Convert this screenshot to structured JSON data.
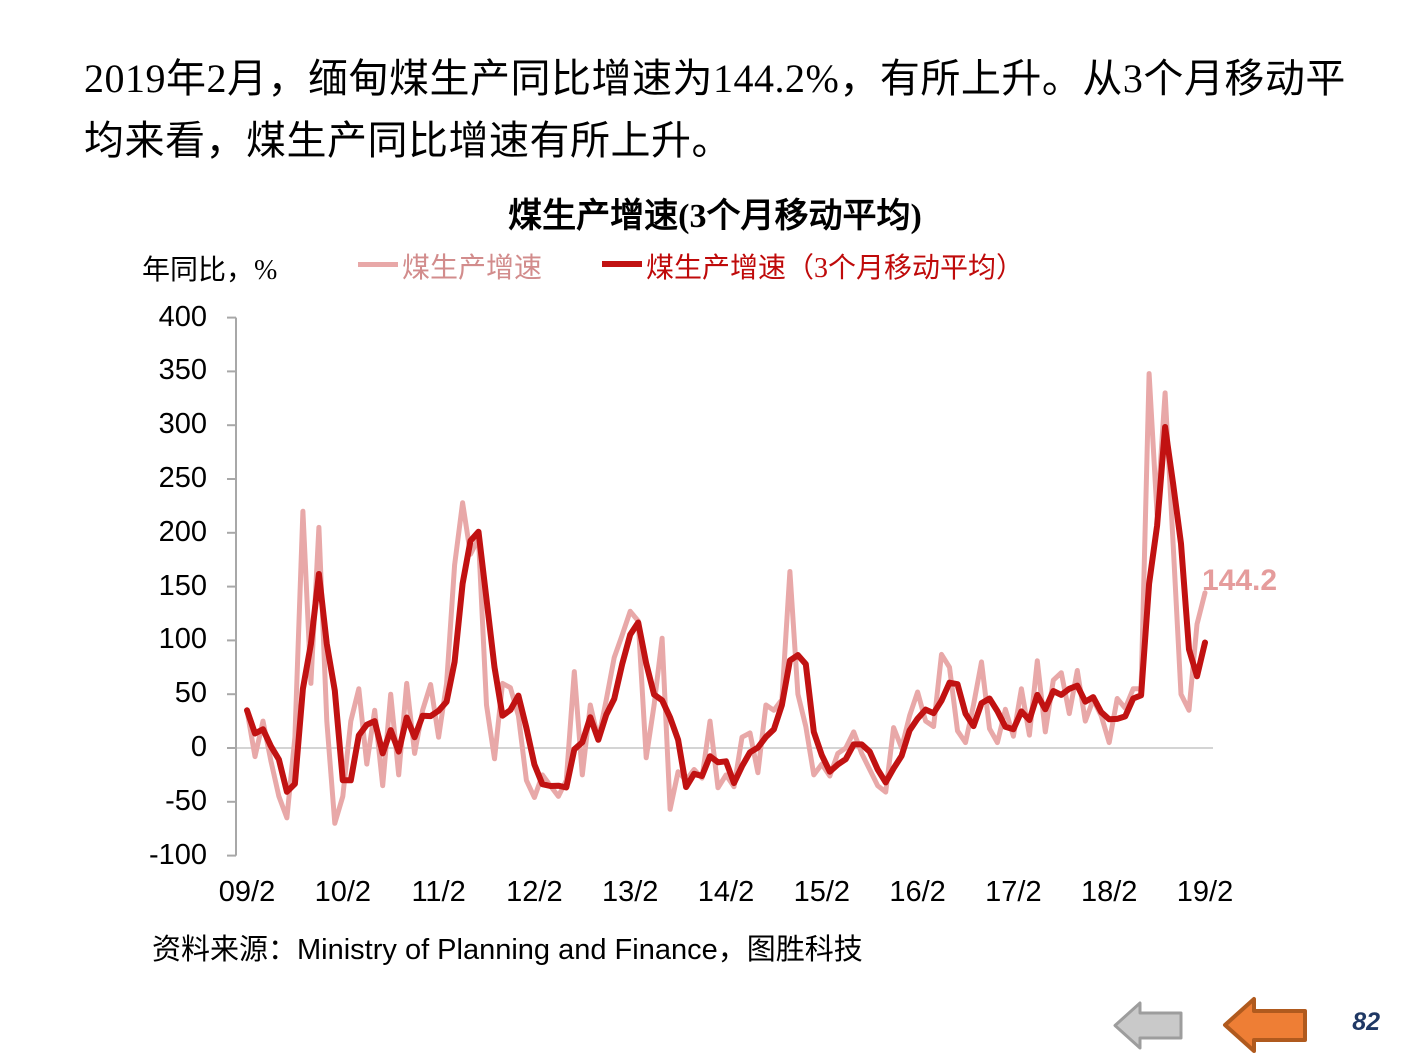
{
  "page": {
    "intro_lines": [
      "2019年2月，缅甸煤生产同比增速为144.2%，有所上升。从3个月移动平",
      "均来看，煤生产同比增速有所上升。"
    ],
    "page_number": "82"
  },
  "source_note": "资料来源：Ministry of Planning and Finance，图胜科技",
  "chart_data": {
    "type": "line",
    "title": "煤生产增速(3个月移动平均)",
    "ylabel": "年同比，%",
    "xlabel": "",
    "ylim": [
      -100,
      400
    ],
    "y_ticks": [
      400,
      350,
      300,
      250,
      200,
      150,
      100,
      50,
      0,
      -50,
      -100
    ],
    "x_tick_labels": [
      "09/2",
      "10/2",
      "11/2",
      "12/2",
      "13/2",
      "14/2",
      "15/2",
      "16/2",
      "17/2",
      "18/2",
      "19/2"
    ],
    "x_start_month": "2009-02",
    "x_end_month": "2019-02",
    "x_points": 121,
    "grid": "zero-line-only",
    "legend_position": "top-left",
    "series": [
      {
        "name": "煤生产增速",
        "color": "#e8a8a8",
        "text_color": "#d28c8c",
        "values": [
          35,
          -8,
          25,
          -12,
          -45,
          -65,
          10,
          220,
          60,
          205,
          25,
          -70,
          -45,
          25,
          55,
          -15,
          35,
          -35,
          50,
          -25,
          60,
          -5,
          35,
          59,
          10,
          60,
          170,
          228,
          180,
          195,
          40,
          -10,
          60,
          56,
          30,
          -30,
          -46,
          -25,
          -35,
          -45,
          -30,
          71,
          -25,
          40,
          8,
          45,
          84,
          105,
          127,
          118,
          -9,
          40,
          102,
          -57,
          -22,
          -30,
          -20,
          -28,
          25,
          -37,
          -25,
          -36,
          10,
          14,
          -23,
          40,
          35,
          45,
          164,
          50,
          20,
          -25,
          -15,
          -26,
          -5,
          0,
          15,
          -5,
          -20,
          -35,
          -41,
          19,
          0,
          30,
          52,
          25,
          20,
          87,
          75,
          16,
          5,
          40,
          80,
          18,
          5,
          36,
          11,
          55,
          12,
          81,
          15,
          63,
          70,
          32,
          72,
          25,
          45,
          30,
          5,
          46,
          37,
          55,
          55,
          348,
          217,
          330,
          190,
          50,
          35,
          115,
          144.2
        ]
      },
      {
        "name": "煤生产增速（3个月移动平均）",
        "color": "#c11212",
        "text_color": "#bf0a0a",
        "derived": "trailing 3-month moving average of series 0"
      }
    ],
    "end_label": {
      "text": "144.2",
      "series": "煤生产增速",
      "x": "19/2",
      "color": "#e59c9c"
    }
  },
  "nav": {
    "gray_back_arrow": "left-arrow",
    "orange_back_arrow": "left-arrow"
  },
  "colors": {
    "monthly_line": "#e8a8a8",
    "ma_line": "#c11212",
    "axis": "#a8a8a8",
    "zero_gridline": "#d4d4d4",
    "end_label": "#e59c9c",
    "page_number": "#1f3864",
    "arrow_gray_fill": "#c9c9c9",
    "arrow_gray_border": "#9d9d9d",
    "arrow_orange_fill": "#ee7e35",
    "arrow_orange_border": "#b05a1e"
  }
}
